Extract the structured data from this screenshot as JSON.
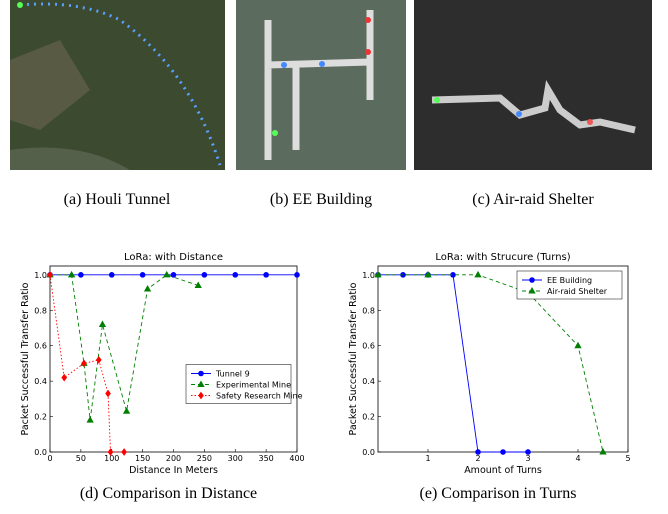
{
  "captions": [
    "(a) Houli Tunnel",
    "(b) EE Building",
    "(c) Air-raid Shelter"
  ],
  "chart_data": [
    {
      "type": "line",
      "title": "LoRa: with Distance",
      "caption": "(d) Comparison in Distance",
      "xlabel": "Distance In Meters",
      "ylabel": "Packet Successful Transfer Ratio",
      "xlim": [
        0,
        400
      ],
      "xticks": [
        0,
        50,
        100,
        150,
        200,
        250,
        300,
        350,
        400
      ],
      "ylim": [
        0,
        1.05
      ],
      "yticks": [
        {
          "value": 0,
          "label": "0.0"
        },
        {
          "value": 0.2,
          "label": "0.2"
        },
        {
          "value": 0.4,
          "label": "0.4"
        },
        {
          "value": 0.6,
          "label": "0.6"
        },
        {
          "value": 0.8,
          "label": "0.8"
        },
        {
          "value": 1,
          "label": "1.0"
        }
      ],
      "legend": "center right",
      "series": [
        {
          "name": "Tunnel 9",
          "color": "#0000ff",
          "marker": "circle",
          "linestyle": "solid",
          "x": [
            0,
            50,
            100,
            150,
            200,
            250,
            300,
            350,
            400
          ],
          "values": [
            1,
            1,
            1,
            1,
            1,
            1,
            1,
            1,
            1
          ]
        },
        {
          "name": "Experimental Mine",
          "color": "#008000",
          "marker": "triangle",
          "linestyle": "dashed",
          "x": [
            0,
            35,
            55,
            65,
            85,
            124,
            158,
            189,
            240
          ],
          "values": [
            1,
            1,
            0.5,
            0.18,
            0.72,
            0.23,
            0.92,
            1,
            0.94
          ]
        },
        {
          "name": "Safety Research Mine",
          "color": "#ff0000",
          "marker": "diamond",
          "linestyle": "dotted",
          "x": [
            0,
            23,
            55,
            79,
            94,
            98,
            120
          ],
          "values": [
            1,
            0.42,
            0.5,
            0.52,
            0.33,
            0,
            0
          ]
        }
      ]
    },
    {
      "type": "line",
      "title": "LoRa: with Strucure (Turns)",
      "caption": "(e) Comparison in Turns",
      "xlabel": "Amount of Turns",
      "ylabel": "Packet Successful Transfer Ratio",
      "xlim": [
        0,
        5
      ],
      "xticks": [
        1,
        2,
        3,
        4,
        5
      ],
      "ylim": [
        0,
        1.05
      ],
      "yticks": [
        {
          "value": 0,
          "label": "0.0"
        },
        {
          "value": 0.2,
          "label": "0.2"
        },
        {
          "value": 0.4,
          "label": "0.4"
        },
        {
          "value": 0.6,
          "label": "0.6"
        },
        {
          "value": 0.8,
          "label": "0.8"
        },
        {
          "value": 1,
          "label": "1.0"
        }
      ],
      "legend": "upper right",
      "series": [
        {
          "name": "EE Building",
          "color": "#0000ff",
          "marker": "circle",
          "linestyle": "solid",
          "x": [
            0,
            0.5,
            1,
            1.5,
            2,
            2.5,
            3
          ],
          "values": [
            1,
            1,
            1,
            1,
            0,
            0,
            0
          ]
        },
        {
          "name": "Air-raid Shelter",
          "color": "#008000",
          "marker": "triangle",
          "linestyle": "dashed",
          "x": [
            0,
            1,
            2,
            3,
            4,
            4.5
          ],
          "values": [
            1,
            1,
            1,
            0.9,
            0.6,
            0
          ]
        }
      ]
    }
  ]
}
